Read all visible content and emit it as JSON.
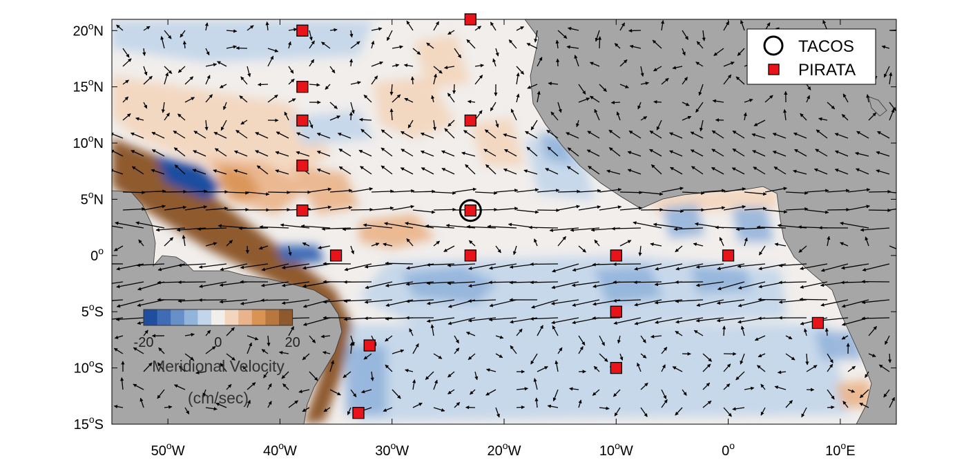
{
  "map": {
    "extent": {
      "lon": [
        -55,
        15
      ],
      "lat": [
        -15,
        21
      ]
    },
    "land_color": "#a6a6a6",
    "ocean_color": "#f1eeec",
    "x_ticks": [
      {
        "lon": -50,
        "num": "50",
        "sup": "o",
        "hem": "W"
      },
      {
        "lon": -40,
        "num": "40",
        "sup": "o",
        "hem": "W"
      },
      {
        "lon": -30,
        "num": "30",
        "sup": "o",
        "hem": "W"
      },
      {
        "lon": -20,
        "num": "20",
        "sup": "o",
        "hem": "W"
      },
      {
        "lon": -10,
        "num": "10",
        "sup": "o",
        "hem": "W"
      },
      {
        "lon": 0,
        "num": "0",
        "sup": "o",
        "hem": ""
      },
      {
        "lon": 10,
        "num": "10",
        "sup": "o",
        "hem": "E"
      }
    ],
    "y_ticks": [
      {
        "lat": 20,
        "num": "20",
        "sup": "o",
        "hem": "N"
      },
      {
        "lat": 15,
        "num": "15",
        "sup": "o",
        "hem": "N"
      },
      {
        "lat": 10,
        "num": "10",
        "sup": "o",
        "hem": "N"
      },
      {
        "lat": 5,
        "num": "5",
        "sup": "o",
        "hem": "N"
      },
      {
        "lat": 0,
        "num": "0",
        "sup": "o",
        "hem": ""
      },
      {
        "lat": -5,
        "num": "5",
        "sup": "o",
        "hem": "S"
      },
      {
        "lat": -10,
        "num": "10",
        "sup": "o",
        "hem": "S"
      },
      {
        "lat": -15,
        "num": "15",
        "sup": "o",
        "hem": "S"
      }
    ],
    "moorings": {
      "tacos": [
        {
          "lon": -23,
          "lat": 4
        }
      ],
      "pirata": [
        {
          "lon": -38,
          "lat": 20
        },
        {
          "lon": -23,
          "lat": 21
        },
        {
          "lon": -38,
          "lat": 15
        },
        {
          "lon": -38,
          "lat": 12
        },
        {
          "lon": -23,
          "lat": 12
        },
        {
          "lon": -38,
          "lat": 8
        },
        {
          "lon": -38,
          "lat": 4
        },
        {
          "lon": -23,
          "lat": 4
        },
        {
          "lon": -35,
          "lat": 0
        },
        {
          "lon": -23,
          "lat": 0
        },
        {
          "lon": -10,
          "lat": 0
        },
        {
          "lon": 0,
          "lat": 0
        },
        {
          "lon": -10,
          "lat": -5
        },
        {
          "lon": 8,
          "lat": -6
        },
        {
          "lon": -32,
          "lat": -8
        },
        {
          "lon": -10,
          "lat": -10
        },
        {
          "lon": -33,
          "lat": -14
        }
      ]
    },
    "legend": {
      "tacos_label": "TACOS",
      "pirata_label": "PIRATA",
      "position": "top-right"
    },
    "colorbar": {
      "colors": [
        "#1f4e9e",
        "#3f6cb5",
        "#6790c8",
        "#93b4da",
        "#c2d5ea",
        "#f1eeec",
        "#f3d5bd",
        "#eab48a",
        "#d99353",
        "#b8773d",
        "#8e5a2d"
      ],
      "range": [
        -20,
        20
      ],
      "tick_labels": [
        "-20",
        "0",
        "20"
      ],
      "title": "Meridional Velocity",
      "units": "(cm/sec)"
    }
  }
}
